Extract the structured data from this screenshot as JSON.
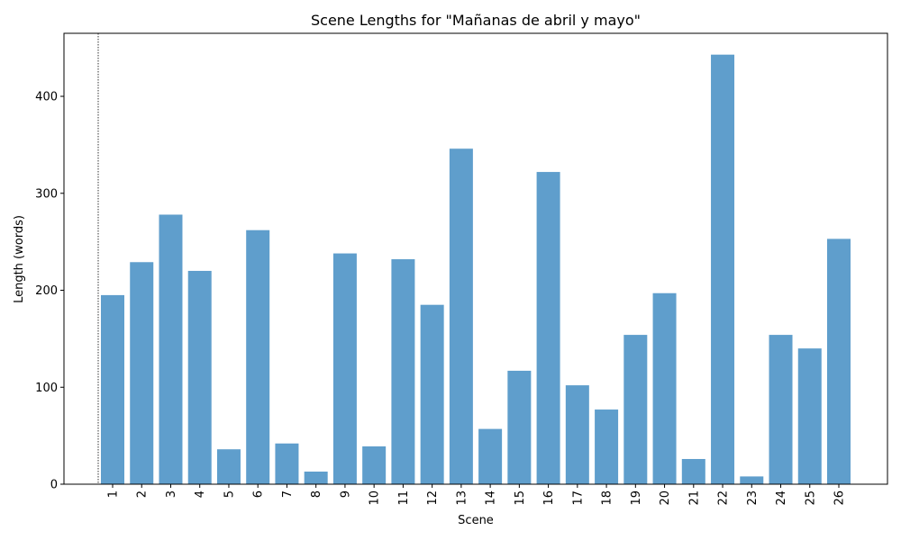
{
  "chart_data": {
    "type": "bar",
    "title": "Scene Lengths for \"Mañanas de abril y mayo\"",
    "xlabel": "Scene",
    "ylabel": "Length (words)",
    "categories": [
      "1",
      "2",
      "3",
      "4",
      "5",
      "6",
      "7",
      "8",
      "9",
      "10",
      "11",
      "12",
      "13",
      "14",
      "15",
      "16",
      "17",
      "18",
      "19",
      "20",
      "21",
      "22",
      "23",
      "24",
      "25",
      "26"
    ],
    "values": [
      195,
      229,
      278,
      220,
      36,
      262,
      42,
      13,
      238,
      39,
      232,
      185,
      346,
      57,
      117,
      322,
      102,
      77,
      154,
      197,
      26,
      443,
      8,
      154,
      140,
      253
    ],
    "ylim": [
      0,
      465
    ],
    "yticks": [
      0,
      100,
      200,
      300,
      400
    ],
    "bar_color": "#5f9ecc",
    "reference_line": {
      "style": "dotted",
      "color": "#000000"
    },
    "grid": false
  }
}
